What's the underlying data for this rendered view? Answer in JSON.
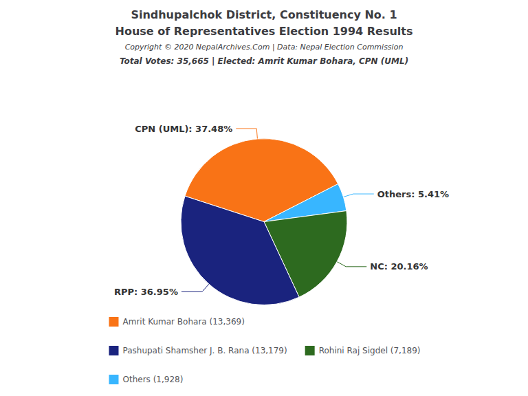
{
  "chart_data": {
    "type": "pie",
    "title": "Sindhupalchok District, Constituency No. 1",
    "subtitle": "House of Representatives Election 1994 Results",
    "annotations": [
      "Copyright © 2020 NepalArchives.Com | Data: Nepal Election Commission",
      "Total Votes: 35,665 | Elected: Amrit Kumar Bohara, CPN (UML)"
    ],
    "categories": [
      "CPN (UML)",
      "Others",
      "NC",
      "RPP"
    ],
    "values": [
      37.48,
      5.41,
      20.16,
      36.95
    ],
    "value_labels": [
      "CPN (UML): 37.48%",
      "Others: 5.41%",
      "NC: 20.16%",
      "RPP: 36.95%"
    ],
    "colors": [
      "#f97316",
      "#38b6ff",
      "#2d6a1f",
      "#1a237e"
    ],
    "data_labels": true,
    "legend": "bottom",
    "legend_entries": [
      {
        "category": "CPN (UML)",
        "label": "Amrit Kumar Bohara (13,369)"
      },
      {
        "category": "RPP",
        "label": "Pashupati Shamsher J. B. Rana (13,179)"
      },
      {
        "category": "NC",
        "label": "Rohini Raj Sigdel (7,189)"
      },
      {
        "category": "Others",
        "label": "Others (1,928)"
      }
    ]
  }
}
